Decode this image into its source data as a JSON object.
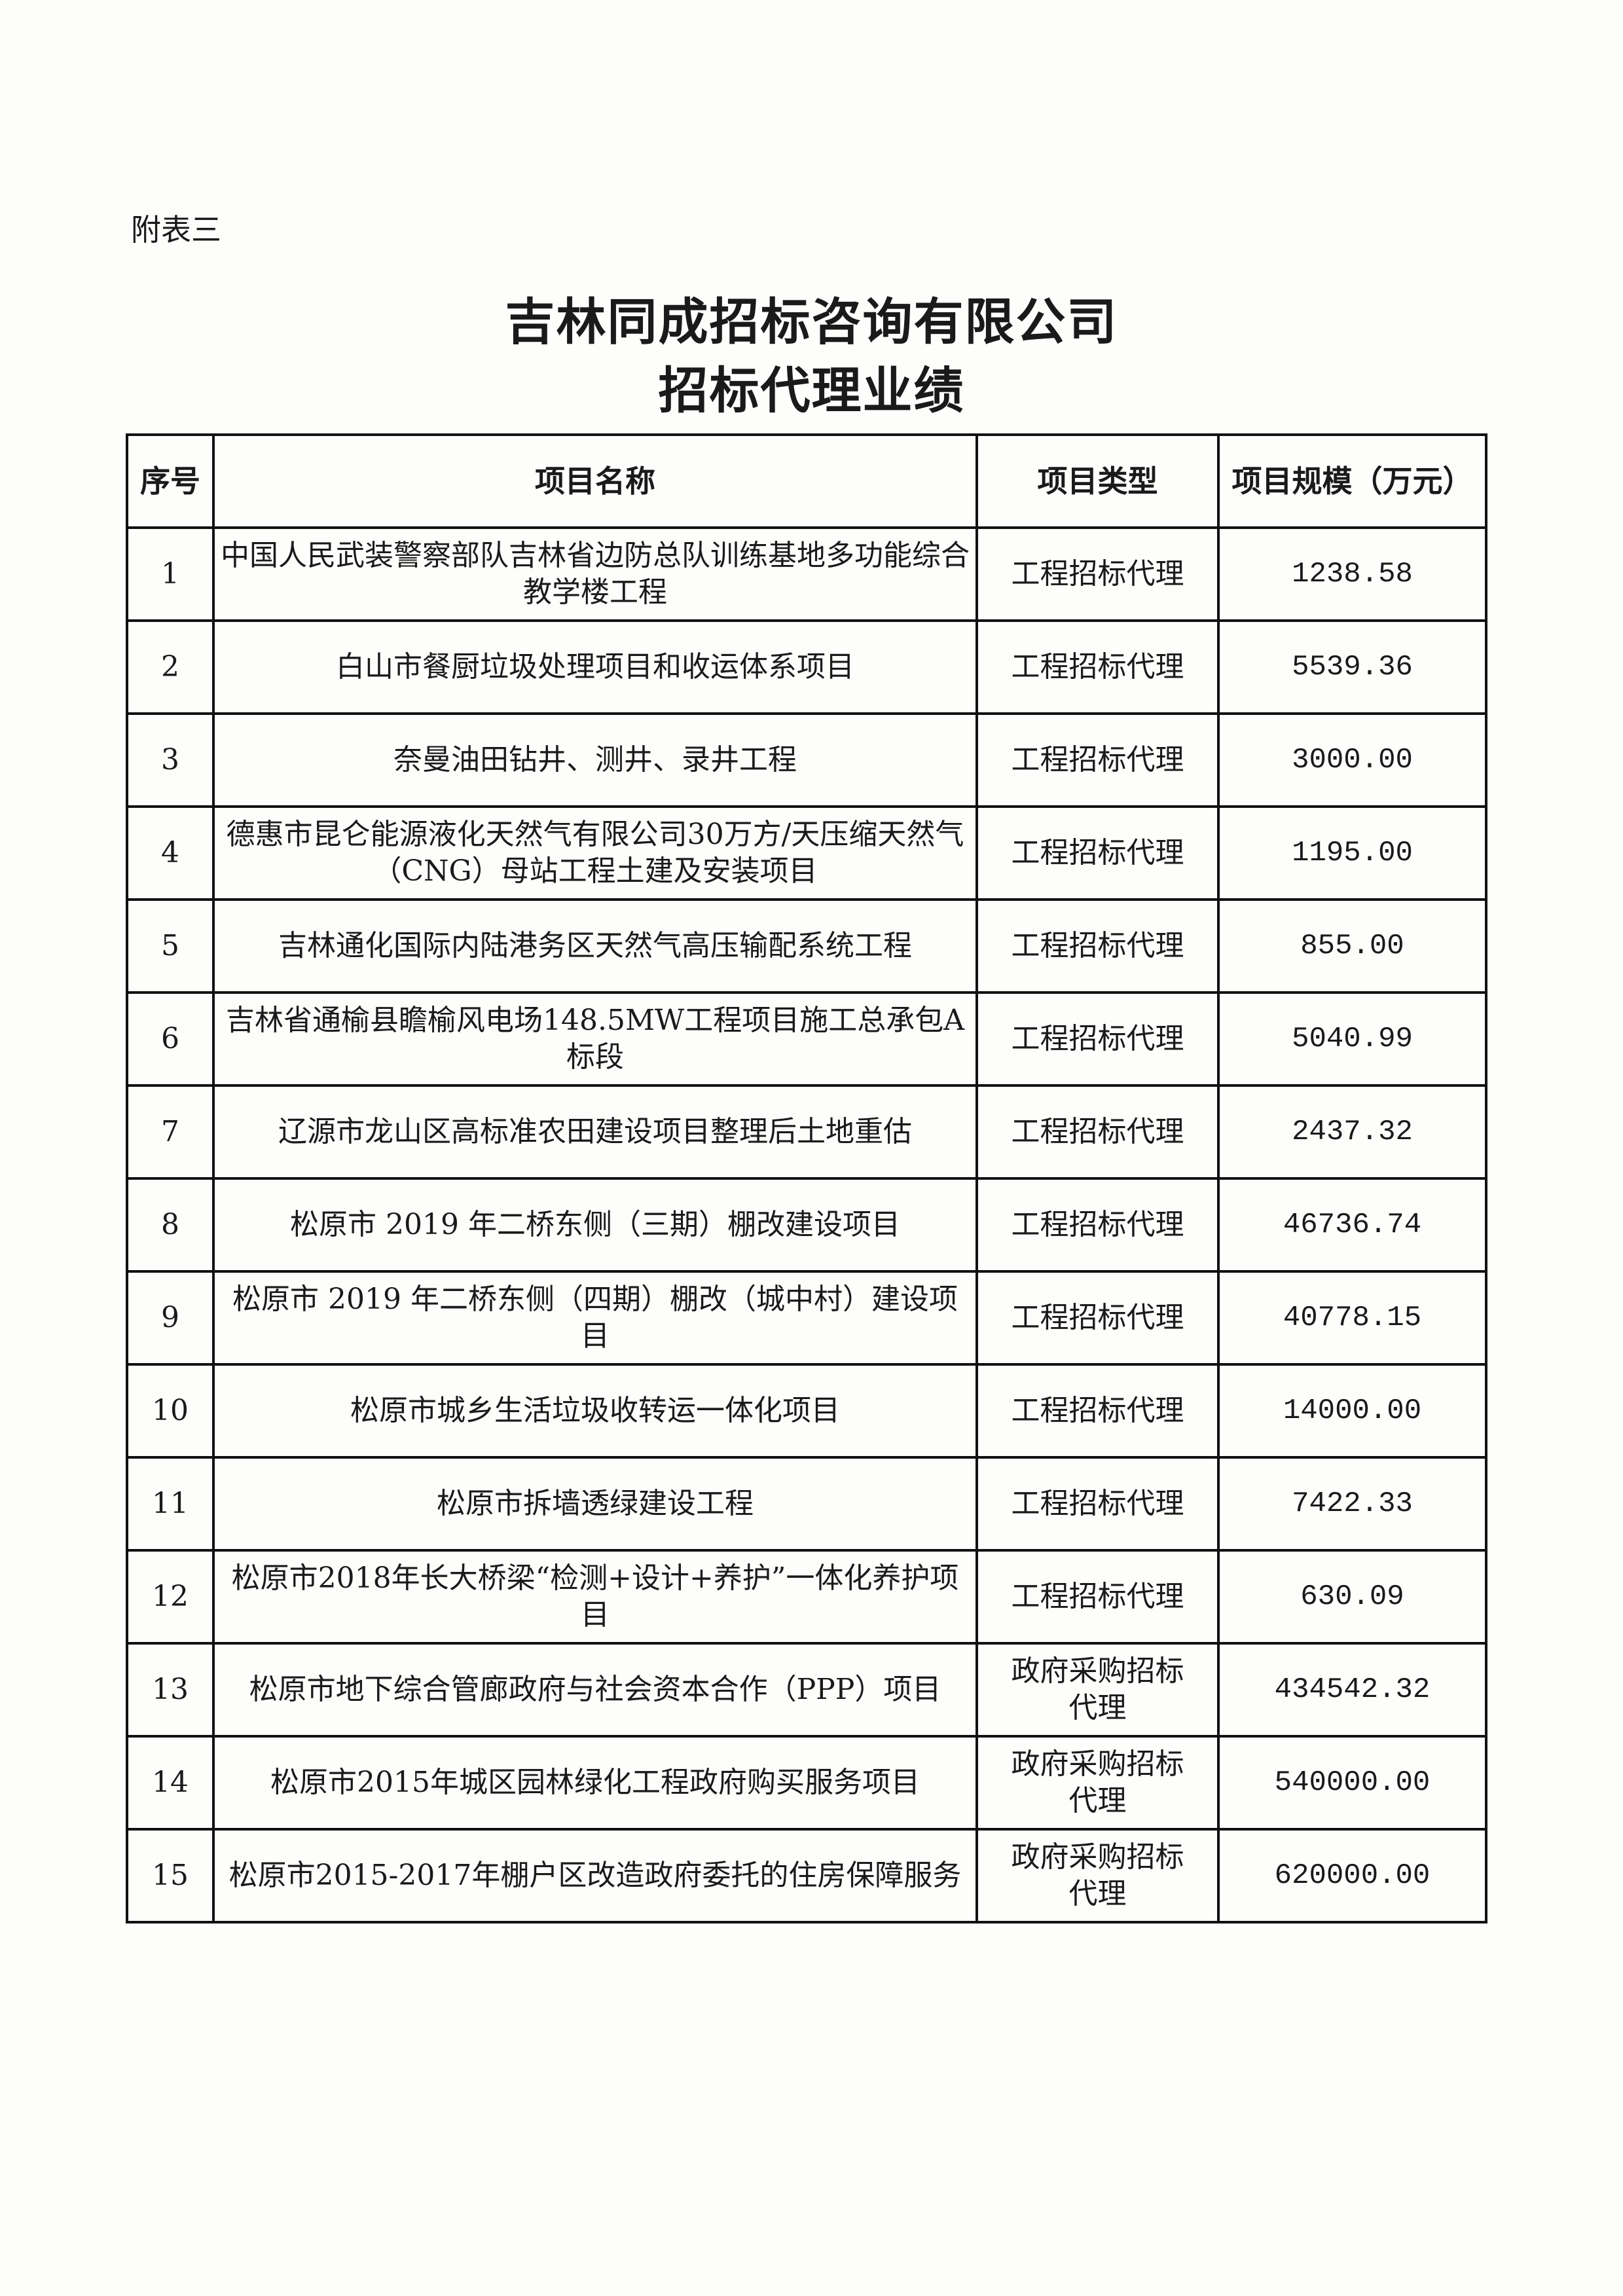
{
  "doc_label": "附表三",
  "title_line1": "吉林同成招标咨询有限公司",
  "title_line2": "招标代理业绩",
  "table": {
    "headers": [
      "序号",
      "项目名称",
      "项目类型",
      "项目规模（万元）"
    ],
    "rows": [
      {
        "no": "1",
        "name": "中国人民武装警察部队吉林省边防总队训练基地多功能综合教学楼工程",
        "type": "工程招标代理",
        "scale": "1238.58"
      },
      {
        "no": "2",
        "name": "白山市餐厨垃圾处理项目和收运体系项目",
        "type": "工程招标代理",
        "scale": "5539.36"
      },
      {
        "no": "3",
        "name": "奈曼油田钻井、测井、录井工程",
        "type": "工程招标代理",
        "scale": "3000.00"
      },
      {
        "no": "4",
        "name": "德惠市昆仑能源液化天然气有限公司30万方/天压缩天然气（CNG）母站工程土建及安装项目",
        "type": "工程招标代理",
        "scale": "1195.00"
      },
      {
        "no": "5",
        "name": "吉林通化国际内陆港务区天然气高压输配系统工程",
        "type": "工程招标代理",
        "scale": "855.00"
      },
      {
        "no": "6",
        "name": "吉林省通榆县瞻榆风电场148.5MW工程项目施工总承包A标段",
        "type": "工程招标代理",
        "scale": "5040.99"
      },
      {
        "no": "7",
        "name": "辽源市龙山区高标准农田建设项目整理后土地重估",
        "type": "工程招标代理",
        "scale": "2437.32"
      },
      {
        "no": "8",
        "name": "松原市 2019 年二桥东侧（三期）棚改建设项目",
        "type": "工程招标代理",
        "scale": "46736.74"
      },
      {
        "no": "9",
        "name": "松原市 2019 年二桥东侧（四期）棚改（城中村）建设项目",
        "type": "工程招标代理",
        "scale": "40778.15"
      },
      {
        "no": "10",
        "name": "松原市城乡生活垃圾收转运一体化项目",
        "type": "工程招标代理",
        "scale": "14000.00"
      },
      {
        "no": "11",
        "name": "松原市拆墙透绿建设工程",
        "type": "工程招标代理",
        "scale": "7422.33"
      },
      {
        "no": "12",
        "name": "松原市2018年长大桥梁“检测+设计+养护”一体化养护项目",
        "type": "工程招标代理",
        "scale": "630.09"
      },
      {
        "no": "13",
        "name": "松原市地下综合管廊政府与社会资本合作（PPP）项目",
        "type": "政府采购招标代理",
        "scale": "434542.32"
      },
      {
        "no": "14",
        "name": "松原市2015年城区园林绿化工程政府购买服务项目",
        "type": "政府采购招标代理",
        "scale": "540000.00"
      },
      {
        "no": "15",
        "name": "松原市2015-2017年棚户区改造政府委托的住房保障服务",
        "type": "政府采购招标代理",
        "scale": "620000.00"
      }
    ]
  }
}
